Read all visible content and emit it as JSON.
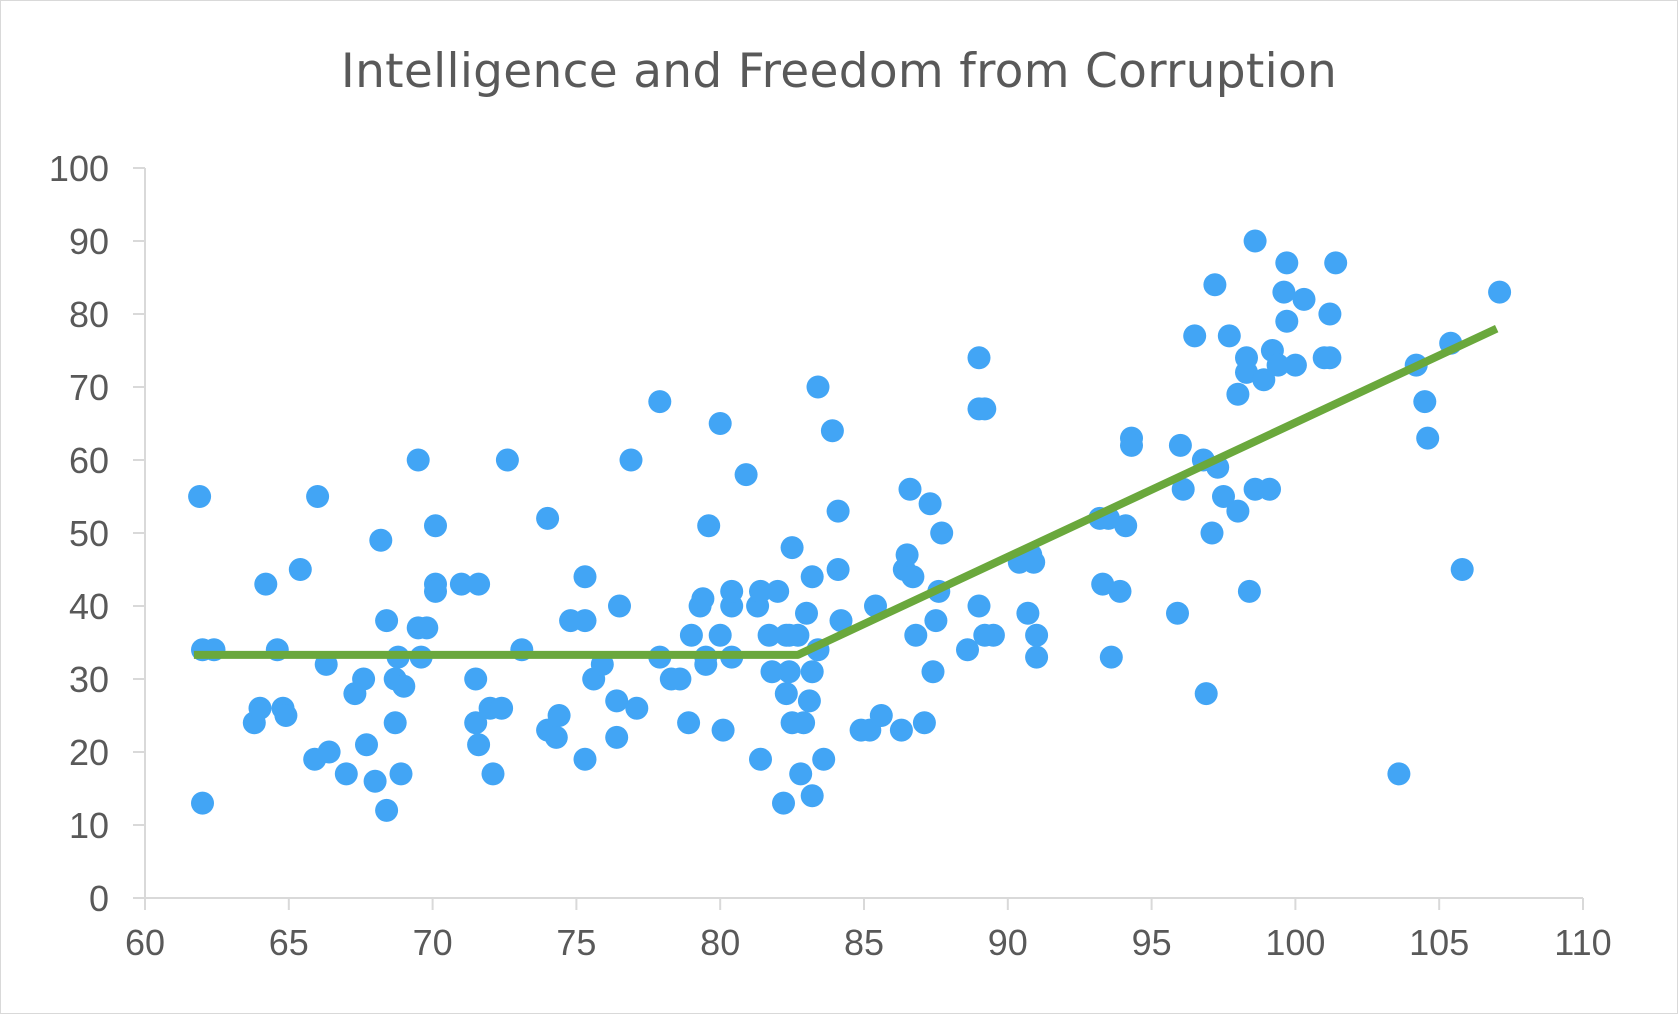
{
  "chart_data": {
    "type": "scatter",
    "title": "Intelligence and Freedom from Corruption",
    "xlabel": "",
    "ylabel": "",
    "xlim": [
      60,
      110
    ],
    "ylim": [
      0,
      100
    ],
    "x_ticks": [
      60,
      65,
      70,
      75,
      80,
      85,
      90,
      95,
      100,
      105,
      110
    ],
    "y_ticks": [
      0,
      10,
      20,
      30,
      40,
      50,
      60,
      70,
      80,
      90,
      100
    ],
    "grid": false,
    "legend": "none",
    "point_color": "#42a5f5",
    "trend_color": "#6aa83c",
    "axis_color": "#d9d9d9",
    "series": [
      {
        "kind": "points",
        "points": [
          [
            61.9,
            55
          ],
          [
            62.0,
            34
          ],
          [
            62.4,
            34
          ],
          [
            62.0,
            13
          ],
          [
            63.8,
            24
          ],
          [
            64.0,
            26
          ],
          [
            64.2,
            43
          ],
          [
            64.6,
            34
          ],
          [
            64.8,
            26
          ],
          [
            64.9,
            25
          ],
          [
            65.4,
            45
          ],
          [
            66.0,
            55
          ],
          [
            65.9,
            19
          ],
          [
            66.4,
            20
          ],
          [
            66.3,
            32
          ],
          [
            67.0,
            17
          ],
          [
            67.3,
            28
          ],
          [
            67.6,
            30
          ],
          [
            67.7,
            21
          ],
          [
            68.0,
            16
          ],
          [
            68.2,
            49
          ],
          [
            68.4,
            12
          ],
          [
            68.4,
            38
          ],
          [
            68.7,
            30
          ],
          [
            68.7,
            24
          ],
          [
            68.8,
            33
          ],
          [
            69.0,
            29
          ],
          [
            68.9,
            17
          ],
          [
            69.5,
            60
          ],
          [
            69.5,
            37
          ],
          [
            69.8,
            37
          ],
          [
            69.6,
            33
          ],
          [
            70.1,
            51
          ],
          [
            70.1,
            43
          ],
          [
            70.1,
            42
          ],
          [
            71.0,
            43
          ],
          [
            71.6,
            43
          ],
          [
            71.5,
            30
          ],
          [
            71.5,
            24
          ],
          [
            71.6,
            21
          ],
          [
            72.0,
            26
          ],
          [
            72.4,
            26
          ],
          [
            72.1,
            17
          ],
          [
            72.6,
            60
          ],
          [
            73.1,
            34
          ],
          [
            74.0,
            52
          ],
          [
            74.0,
            23
          ],
          [
            74.3,
            22
          ],
          [
            74.4,
            25
          ],
          [
            74.8,
            38
          ],
          [
            75.3,
            44
          ],
          [
            75.3,
            38
          ],
          [
            75.3,
            19
          ],
          [
            75.6,
            30
          ],
          [
            75.9,
            32
          ],
          [
            76.4,
            27
          ],
          [
            76.5,
            40
          ],
          [
            76.4,
            22
          ],
          [
            76.9,
            60
          ],
          [
            77.1,
            26
          ],
          [
            77.9,
            68
          ],
          [
            77.9,
            33
          ],
          [
            78.3,
            30
          ],
          [
            78.6,
            30
          ],
          [
            79.0,
            36
          ],
          [
            78.9,
            24
          ],
          [
            79.3,
            40
          ],
          [
            79.4,
            41
          ],
          [
            79.5,
            32
          ],
          [
            79.6,
            51
          ],
          [
            79.5,
            33
          ],
          [
            80.0,
            65
          ],
          [
            80.0,
            36
          ],
          [
            80.1,
            23
          ],
          [
            80.4,
            33
          ],
          [
            80.4,
            40
          ],
          [
            80.4,
            42
          ],
          [
            80.9,
            58
          ],
          [
            81.3,
            40
          ],
          [
            81.4,
            42
          ],
          [
            81.4,
            19
          ],
          [
            81.7,
            36
          ],
          [
            81.8,
            31
          ],
          [
            82.0,
            42
          ],
          [
            82.2,
            13
          ],
          [
            82.3,
            36
          ],
          [
            82.3,
            28
          ],
          [
            82.5,
            48
          ],
          [
            82.4,
            36
          ],
          [
            82.4,
            31
          ],
          [
            82.7,
            36
          ],
          [
            82.5,
            24
          ],
          [
            82.8,
            17
          ],
          [
            82.9,
            24
          ],
          [
            83.0,
            39
          ],
          [
            83.1,
            27
          ],
          [
            83.2,
            44
          ],
          [
            83.2,
            31
          ],
          [
            83.2,
            14
          ],
          [
            83.4,
            34
          ],
          [
            83.4,
            70
          ],
          [
            83.6,
            19
          ],
          [
            83.9,
            64
          ],
          [
            84.1,
            53
          ],
          [
            84.1,
            45
          ],
          [
            84.2,
            38
          ],
          [
            84.9,
            23
          ],
          [
            85.2,
            23
          ],
          [
            85.4,
            40
          ],
          [
            85.6,
            25
          ],
          [
            86.3,
            23
          ],
          [
            86.4,
            45
          ],
          [
            86.5,
            47
          ],
          [
            86.6,
            56
          ],
          [
            86.7,
            44
          ],
          [
            86.8,
            36
          ],
          [
            87.1,
            24
          ],
          [
            87.3,
            54
          ],
          [
            87.4,
            31
          ],
          [
            87.5,
            38
          ],
          [
            87.6,
            42
          ],
          [
            87.7,
            50
          ],
          [
            88.6,
            34
          ],
          [
            89.0,
            74
          ],
          [
            89.0,
            40
          ],
          [
            89.2,
            36
          ],
          [
            89.0,
            67
          ],
          [
            89.2,
            67
          ],
          [
            89.5,
            36
          ],
          [
            90.4,
            46
          ],
          [
            90.7,
            39
          ],
          [
            90.8,
            47
          ],
          [
            90.9,
            46
          ],
          [
            91.0,
            33
          ],
          [
            91.0,
            36
          ],
          [
            93.2,
            52
          ],
          [
            93.5,
            52
          ],
          [
            93.3,
            43
          ],
          [
            93.6,
            33
          ],
          [
            93.9,
            42
          ],
          [
            94.1,
            51
          ],
          [
            94.3,
            63
          ],
          [
            94.3,
            62
          ],
          [
            95.9,
            39
          ],
          [
            96.0,
            62
          ],
          [
            96.1,
            56
          ],
          [
            96.5,
            77
          ],
          [
            96.8,
            60
          ],
          [
            96.9,
            28
          ],
          [
            97.1,
            50
          ],
          [
            97.2,
            84
          ],
          [
            97.3,
            59
          ],
          [
            97.5,
            55
          ],
          [
            97.7,
            77
          ],
          [
            98.0,
            69
          ],
          [
            98.0,
            53
          ],
          [
            98.3,
            72
          ],
          [
            98.3,
            74
          ],
          [
            98.4,
            42
          ],
          [
            98.6,
            90
          ],
          [
            98.6,
            56
          ],
          [
            98.9,
            71
          ],
          [
            99.2,
            75
          ],
          [
            99.1,
            56
          ],
          [
            99.4,
            73
          ],
          [
            99.7,
            87
          ],
          [
            99.6,
            83
          ],
          [
            99.7,
            79
          ],
          [
            100.0,
            73
          ],
          [
            100.3,
            82
          ],
          [
            101.0,
            74
          ],
          [
            101.2,
            74
          ],
          [
            101.2,
            80
          ],
          [
            101.4,
            87
          ],
          [
            103.6,
            17
          ],
          [
            104.2,
            73
          ],
          [
            104.5,
            68
          ],
          [
            104.6,
            63
          ],
          [
            105.4,
            76
          ],
          [
            105.8,
            45
          ],
          [
            107.1,
            83
          ]
        ]
      },
      {
        "kind": "trend-line",
        "points": [
          [
            61.7,
            33.3
          ],
          [
            82.7,
            33.3
          ],
          [
            107.0,
            78
          ]
        ]
      }
    ]
  }
}
